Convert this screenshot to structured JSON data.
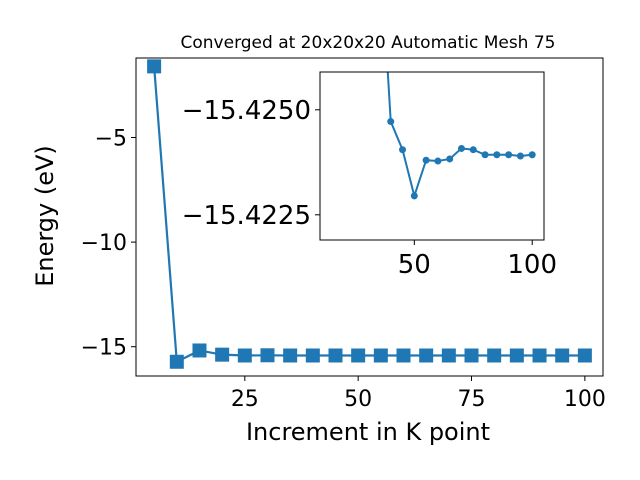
{
  "chart_data": [
    {
      "type": "line",
      "title": "Converged at 20x20x20 Automatic Mesh 75",
      "xlabel": "Increment in K point",
      "ylabel": "Energy (eV)",
      "xlim": [
        1,
        104
      ],
      "ylim": [
        -16.4,
        -1.2
      ],
      "xticks": [
        25,
        50,
        75,
        100
      ],
      "xtick_labels": [
        "25",
        "50",
        "75",
        "100"
      ],
      "yticks": [
        -15,
        -10,
        -5
      ],
      "ytick_labels": [
        "−15",
        "−10",
        "−5"
      ],
      "grid": false,
      "legend": "none",
      "marker": "square",
      "color": "#1f77b4",
      "series": [
        {
          "x": [
            5,
            10,
            15,
            20,
            25,
            30,
            35,
            40,
            45,
            50,
            55,
            60,
            65,
            70,
            75,
            80,
            85,
            90,
            95,
            100
          ],
          "y": [
            -1.6,
            -15.72,
            -15.18,
            -15.38,
            -15.42,
            -15.41,
            -15.42,
            -15.42,
            -15.42,
            -15.42,
            -15.42,
            -15.42,
            -15.42,
            -15.42,
            -15.42,
            -15.42,
            -15.42,
            -15.42,
            -15.42,
            -15.42
          ]
        }
      ]
    },
    {
      "type": "line",
      "role": "inset",
      "xlim": [
        10,
        105
      ],
      "ylim": [
        -15.4219,
        -15.4259
      ],
      "xticks": [
        50,
        100
      ],
      "xtick_labels": [
        "50",
        "100"
      ],
      "yticks": [
        -15.425,
        -15.4225
      ],
      "ytick_labels": [
        "−15.4250",
        "−15.4225"
      ],
      "marker": "circle",
      "color": "#1f77b4",
      "series": [
        {
          "x": [
            35,
            40,
            45,
            50,
            55,
            60,
            65,
            70,
            75,
            80,
            85,
            90,
            95,
            100
          ],
          "y": [
            -15.4294,
            -15.42472,
            -15.42405,
            -15.42295,
            -15.4238,
            -15.42378,
            -15.42383,
            -15.42408,
            -15.42405,
            -15.42393,
            -15.42393,
            -15.42393,
            -15.4239,
            -15.42393
          ]
        }
      ]
    }
  ]
}
